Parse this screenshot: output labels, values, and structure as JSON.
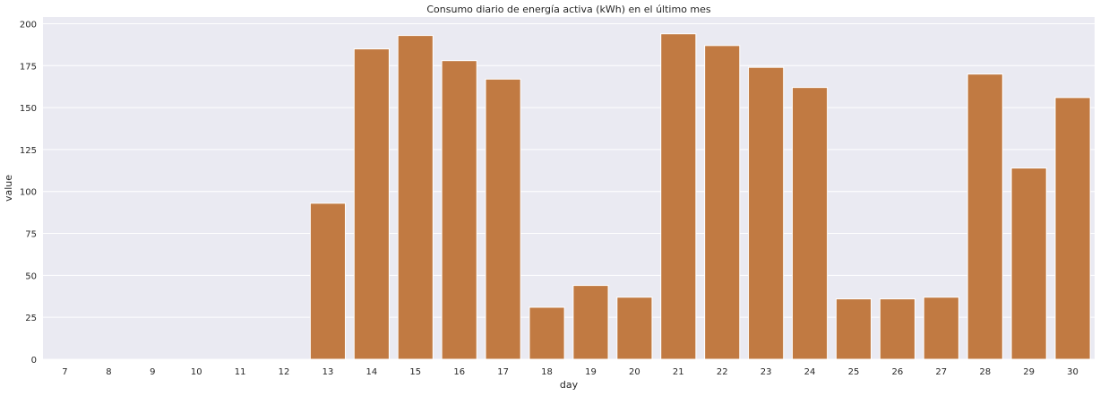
{
  "chart_data": {
    "type": "bar",
    "title": "Consumo diario de energía activa (kWh) en el último mes",
    "xlabel": "day",
    "ylabel": "value",
    "categories": [
      "7",
      "8",
      "9",
      "10",
      "11",
      "12",
      "13",
      "14",
      "15",
      "16",
      "17",
      "18",
      "19",
      "20",
      "21",
      "22",
      "23",
      "24",
      "25",
      "26",
      "27",
      "28",
      "29",
      "30"
    ],
    "values": [
      0,
      0,
      0,
      0,
      0,
      0,
      93,
      185,
      193,
      178,
      167,
      31,
      44,
      37,
      194,
      187,
      174,
      162,
      36,
      36,
      37,
      170,
      114,
      156
    ],
    "ylim": [
      0,
      204
    ],
    "yticks": [
      0,
      25,
      50,
      75,
      100,
      125,
      150,
      175,
      200
    ],
    "grid": true,
    "colors": {
      "bar": "#c17a42",
      "background": "#eaeaf2",
      "grid": "#ffffff"
    }
  }
}
